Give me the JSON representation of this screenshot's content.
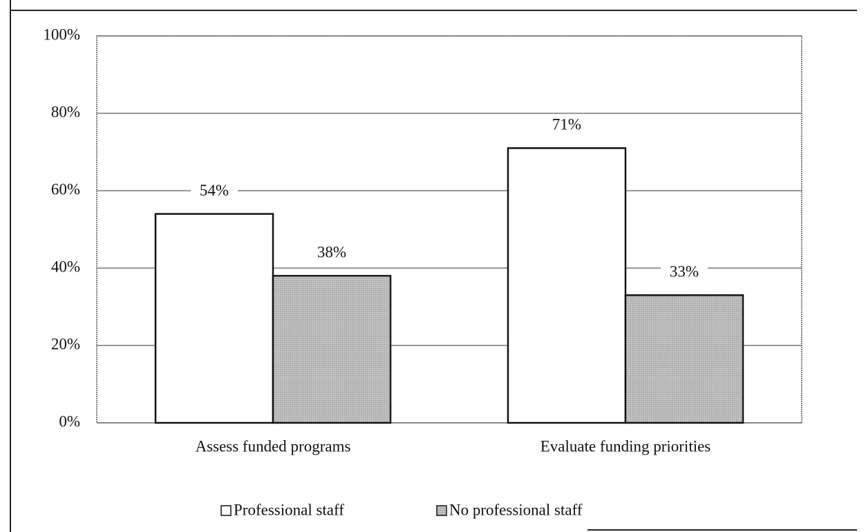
{
  "chart_data": {
    "type": "bar",
    "categories": [
      "Assess funded programs",
      "Evaluate funding priorities"
    ],
    "series": [
      {
        "name": "Professional staff",
        "color": "#ffffff",
        "values": [
          54,
          71
        ],
        "value_labels": [
          "54%",
          "71%"
        ]
      },
      {
        "name": "No professional staff",
        "color": "#c4c4c4",
        "values": [
          38,
          33
        ],
        "value_labels": [
          "38%",
          "33%"
        ]
      }
    ],
    "ylim": [
      0,
      100
    ],
    "yticks": [
      {
        "value": 0,
        "label": "0%"
      },
      {
        "value": 20,
        "label": "20%"
      },
      {
        "value": 40,
        "label": "40%"
      },
      {
        "value": 60,
        "label": "60%"
      },
      {
        "value": 80,
        "label": "80%"
      },
      {
        "value": 100,
        "label": "100%"
      }
    ],
    "grid": true
  }
}
